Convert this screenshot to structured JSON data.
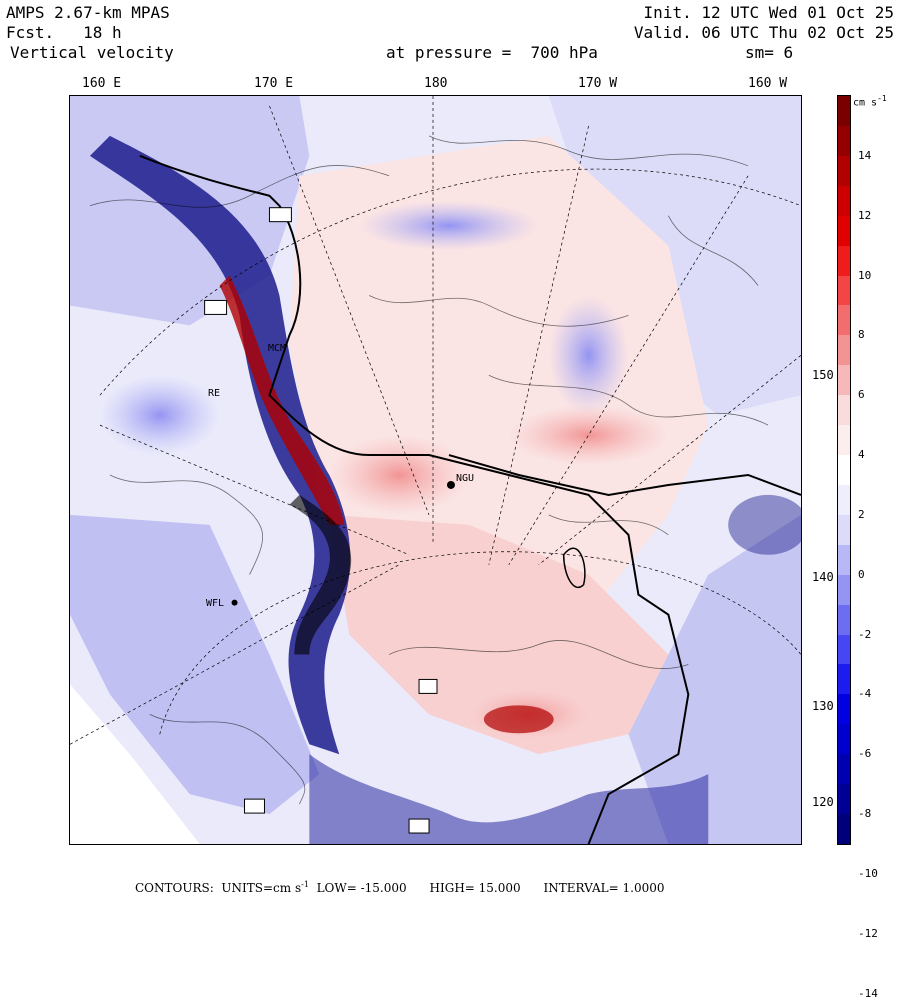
{
  "header": {
    "model": "AMPS 2.67-km MPAS",
    "fcst_label": "Fcst.",
    "fcst_value": "18 h",
    "field": "Vertical velocity",
    "level": "at pressure =  700 hPa",
    "init": "Init. 12 UTC Wed 01 Oct 25",
    "valid": "Valid. 06 UTC Thu 02 Oct 25",
    "smoothing": "sm= 6"
  },
  "lon_labels": [
    "160 E",
    "170 E",
    "180",
    "170 W",
    "160 W"
  ],
  "lat_labels": [
    "150 W",
    "140 W",
    "130 W",
    "120 W"
  ],
  "stations": [
    "MCM",
    "NGU",
    "WFL",
    "RE"
  ],
  "colorbar": {
    "unit": "cm s",
    "unit_exp": "-1",
    "labels": [
      "14",
      "12",
      "10",
      "8",
      "6",
      "4",
      "2",
      "0",
      "-2",
      "-4",
      "-6",
      "-8",
      "-10",
      "-12",
      "-14"
    ],
    "colors": [
      "#7a0000",
      "#940000",
      "#b00000",
      "#cc0000",
      "#e00000",
      "#ee1c1c",
      "#f24646",
      "#f26d6d",
      "#f29494",
      "#f6b8b8",
      "#fadcdc",
      "#fdeeee",
      "#ffffff",
      "#eeeefd",
      "#dcdcfa",
      "#b8b8f6",
      "#9494f2",
      "#6d6df2",
      "#4646f2",
      "#1c1cee",
      "#0000e0",
      "#0000cc",
      "#0000b0",
      "#000094",
      "#00007a"
    ]
  },
  "footer": {
    "contours_label": "CONTOURS:",
    "units": "UNITS=cm s",
    "units_exp": "-1",
    "low": "LOW= -15.000",
    "high": "HIGH= 15.000",
    "interval": "INTERVAL= 1.0000"
  }
}
